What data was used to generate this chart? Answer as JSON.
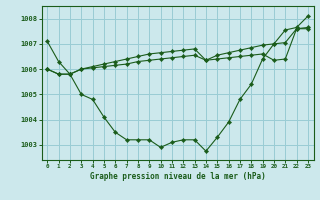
{
  "title": "Graphe pression niveau de la mer (hPa)",
  "background_color": "#cce8ec",
  "grid_color": "#99ccd4",
  "line_color": "#1a5c1a",
  "x_labels": [
    "0",
    "1",
    "2",
    "3",
    "4",
    "5",
    "6",
    "7",
    "8",
    "9",
    "10",
    "11",
    "12",
    "13",
    "14",
    "15",
    "16",
    "17",
    "18",
    "19",
    "20",
    "21",
    "22",
    "23"
  ],
  "ylim": [
    1002.4,
    1008.5
  ],
  "yticks": [
    1003,
    1004,
    1005,
    1006,
    1007,
    1008
  ],
  "series": [
    [
      1007.1,
      1006.3,
      1005.8,
      1005.0,
      1004.8,
      1004.1,
      1003.5,
      1003.2,
      1003.2,
      1003.2,
      1002.9,
      1003.1,
      1003.2,
      1003.2,
      1002.75,
      1003.3,
      1003.9,
      1004.8,
      1005.4,
      1006.4,
      1007.0,
      1007.55,
      1007.65,
      1008.1
    ],
    [
      1006.0,
      1005.8,
      1005.8,
      1006.0,
      1006.05,
      1006.1,
      1006.15,
      1006.2,
      1006.3,
      1006.35,
      1006.4,
      1006.45,
      1006.5,
      1006.55,
      1006.35,
      1006.4,
      1006.45,
      1006.5,
      1006.55,
      1006.6,
      1006.35,
      1006.4,
      1007.6,
      1007.6
    ],
    [
      1006.0,
      1005.8,
      1005.8,
      1006.0,
      1006.1,
      1006.2,
      1006.3,
      1006.4,
      1006.5,
      1006.6,
      1006.65,
      1006.7,
      1006.75,
      1006.8,
      1006.35,
      1006.55,
      1006.65,
      1006.75,
      1006.85,
      1006.95,
      1007.0,
      1007.05,
      1007.6,
      1007.65
    ]
  ]
}
